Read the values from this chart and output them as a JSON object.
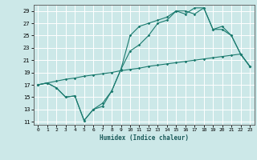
{
  "xlabel": "Humidex (Indice chaleur)",
  "bg_color": "#cce8e8",
  "grid_color": "#ffffff",
  "line_color": "#1a7a6e",
  "xlim": [
    -0.5,
    23.5
  ],
  "ylim": [
    10.5,
    30.0
  ],
  "yticks": [
    11,
    13,
    15,
    17,
    19,
    21,
    23,
    25,
    27,
    29
  ],
  "xticks": [
    0,
    1,
    2,
    3,
    4,
    5,
    6,
    7,
    8,
    9,
    10,
    11,
    12,
    13,
    14,
    15,
    16,
    17,
    18,
    19,
    20,
    21,
    22,
    23
  ],
  "line1_x": [
    0,
    1,
    2,
    3,
    4,
    5,
    6,
    7,
    8,
    9,
    10,
    11,
    12,
    13,
    14,
    15,
    16,
    17,
    18,
    19,
    20,
    21,
    22,
    23
  ],
  "line1_y": [
    17.0,
    17.3,
    17.6,
    17.9,
    18.1,
    18.4,
    18.6,
    18.8,
    19.0,
    19.3,
    19.5,
    19.7,
    20.0,
    20.2,
    20.4,
    20.6,
    20.8,
    21.0,
    21.2,
    21.4,
    21.6,
    21.8,
    22.0,
    20.0
  ],
  "line2_x": [
    0,
    1,
    2,
    3,
    4,
    5,
    6,
    7,
    8,
    9,
    10,
    11,
    12,
    13,
    14,
    15,
    16,
    17,
    18,
    19,
    20,
    21,
    22,
    23
  ],
  "line2_y": [
    17.0,
    17.3,
    16.5,
    15.0,
    15.2,
    11.2,
    13.0,
    13.5,
    16.0,
    19.5,
    25.0,
    26.5,
    27.0,
    27.5,
    28.0,
    29.0,
    29.0,
    28.5,
    29.5,
    26.0,
    26.0,
    25.0,
    22.0,
    20.0
  ],
  "line3_x": [
    0,
    1,
    2,
    3,
    4,
    5,
    6,
    7,
    8,
    9,
    10,
    11,
    12,
    13,
    14,
    15,
    16,
    17,
    18,
    19,
    20,
    21,
    22,
    23
  ],
  "line3_y": [
    17.0,
    17.3,
    16.5,
    15.0,
    15.2,
    11.2,
    13.0,
    14.0,
    16.0,
    19.5,
    22.5,
    23.5,
    25.0,
    27.0,
    27.5,
    29.0,
    28.5,
    29.5,
    29.5,
    26.0,
    26.5,
    25.0,
    22.0,
    20.0
  ]
}
